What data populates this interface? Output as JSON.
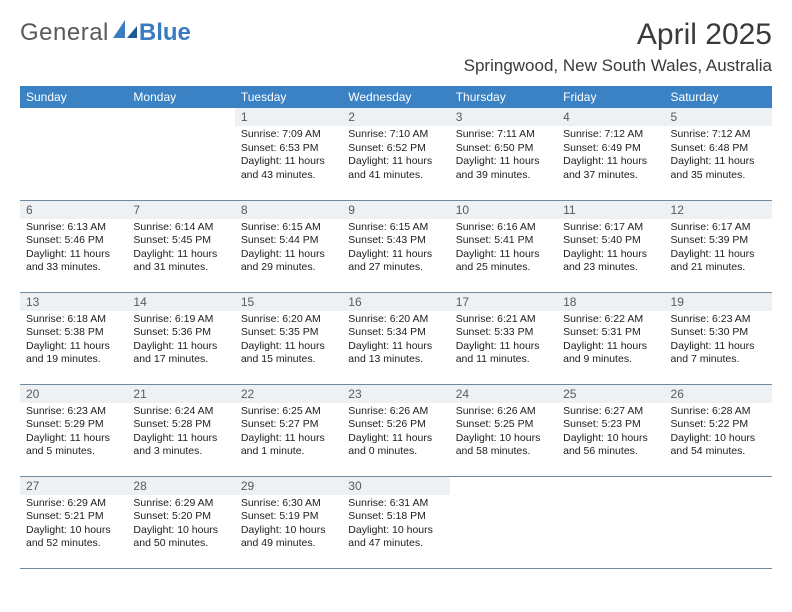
{
  "brand": {
    "part1": "General",
    "part2": "Blue"
  },
  "title": "April 2025",
  "location": "Springwood, New South Wales, Australia",
  "colors": {
    "header_bg": "#3b82c4",
    "header_text": "#ffffff",
    "daynum_bg": "#eef1f3",
    "border": "#6f8aa0",
    "brand_blue": "#3b7bbf"
  },
  "weekdays": [
    "Sunday",
    "Monday",
    "Tuesday",
    "Wednesday",
    "Thursday",
    "Friday",
    "Saturday"
  ],
  "weeks": [
    [
      null,
      null,
      {
        "n": "1",
        "sr": "7:09 AM",
        "ss": "6:53 PM",
        "dl": "11 hours and 43 minutes."
      },
      {
        "n": "2",
        "sr": "7:10 AM",
        "ss": "6:52 PM",
        "dl": "11 hours and 41 minutes."
      },
      {
        "n": "3",
        "sr": "7:11 AM",
        "ss": "6:50 PM",
        "dl": "11 hours and 39 minutes."
      },
      {
        "n": "4",
        "sr": "7:12 AM",
        "ss": "6:49 PM",
        "dl": "11 hours and 37 minutes."
      },
      {
        "n": "5",
        "sr": "7:12 AM",
        "ss": "6:48 PM",
        "dl": "11 hours and 35 minutes."
      }
    ],
    [
      {
        "n": "6",
        "sr": "6:13 AM",
        "ss": "5:46 PM",
        "dl": "11 hours and 33 minutes."
      },
      {
        "n": "7",
        "sr": "6:14 AM",
        "ss": "5:45 PM",
        "dl": "11 hours and 31 minutes."
      },
      {
        "n": "8",
        "sr": "6:15 AM",
        "ss": "5:44 PM",
        "dl": "11 hours and 29 minutes."
      },
      {
        "n": "9",
        "sr": "6:15 AM",
        "ss": "5:43 PM",
        "dl": "11 hours and 27 minutes."
      },
      {
        "n": "10",
        "sr": "6:16 AM",
        "ss": "5:41 PM",
        "dl": "11 hours and 25 minutes."
      },
      {
        "n": "11",
        "sr": "6:17 AM",
        "ss": "5:40 PM",
        "dl": "11 hours and 23 minutes."
      },
      {
        "n": "12",
        "sr": "6:17 AM",
        "ss": "5:39 PM",
        "dl": "11 hours and 21 minutes."
      }
    ],
    [
      {
        "n": "13",
        "sr": "6:18 AM",
        "ss": "5:38 PM",
        "dl": "11 hours and 19 minutes."
      },
      {
        "n": "14",
        "sr": "6:19 AM",
        "ss": "5:36 PM",
        "dl": "11 hours and 17 minutes."
      },
      {
        "n": "15",
        "sr": "6:20 AM",
        "ss": "5:35 PM",
        "dl": "11 hours and 15 minutes."
      },
      {
        "n": "16",
        "sr": "6:20 AM",
        "ss": "5:34 PM",
        "dl": "11 hours and 13 minutes."
      },
      {
        "n": "17",
        "sr": "6:21 AM",
        "ss": "5:33 PM",
        "dl": "11 hours and 11 minutes."
      },
      {
        "n": "18",
        "sr": "6:22 AM",
        "ss": "5:31 PM",
        "dl": "11 hours and 9 minutes."
      },
      {
        "n": "19",
        "sr": "6:23 AM",
        "ss": "5:30 PM",
        "dl": "11 hours and 7 minutes."
      }
    ],
    [
      {
        "n": "20",
        "sr": "6:23 AM",
        "ss": "5:29 PM",
        "dl": "11 hours and 5 minutes."
      },
      {
        "n": "21",
        "sr": "6:24 AM",
        "ss": "5:28 PM",
        "dl": "11 hours and 3 minutes."
      },
      {
        "n": "22",
        "sr": "6:25 AM",
        "ss": "5:27 PM",
        "dl": "11 hours and 1 minute."
      },
      {
        "n": "23",
        "sr": "6:26 AM",
        "ss": "5:26 PM",
        "dl": "11 hours and 0 minutes."
      },
      {
        "n": "24",
        "sr": "6:26 AM",
        "ss": "5:25 PM",
        "dl": "10 hours and 58 minutes."
      },
      {
        "n": "25",
        "sr": "6:27 AM",
        "ss": "5:23 PM",
        "dl": "10 hours and 56 minutes."
      },
      {
        "n": "26",
        "sr": "6:28 AM",
        "ss": "5:22 PM",
        "dl": "10 hours and 54 minutes."
      }
    ],
    [
      {
        "n": "27",
        "sr": "6:29 AM",
        "ss": "5:21 PM",
        "dl": "10 hours and 52 minutes."
      },
      {
        "n": "28",
        "sr": "6:29 AM",
        "ss": "5:20 PM",
        "dl": "10 hours and 50 minutes."
      },
      {
        "n": "29",
        "sr": "6:30 AM",
        "ss": "5:19 PM",
        "dl": "10 hours and 49 minutes."
      },
      {
        "n": "30",
        "sr": "6:31 AM",
        "ss": "5:18 PM",
        "dl": "10 hours and 47 minutes."
      },
      null,
      null,
      null
    ]
  ],
  "labels": {
    "sunrise": "Sunrise:",
    "sunset": "Sunset:",
    "daylight": "Daylight:"
  }
}
